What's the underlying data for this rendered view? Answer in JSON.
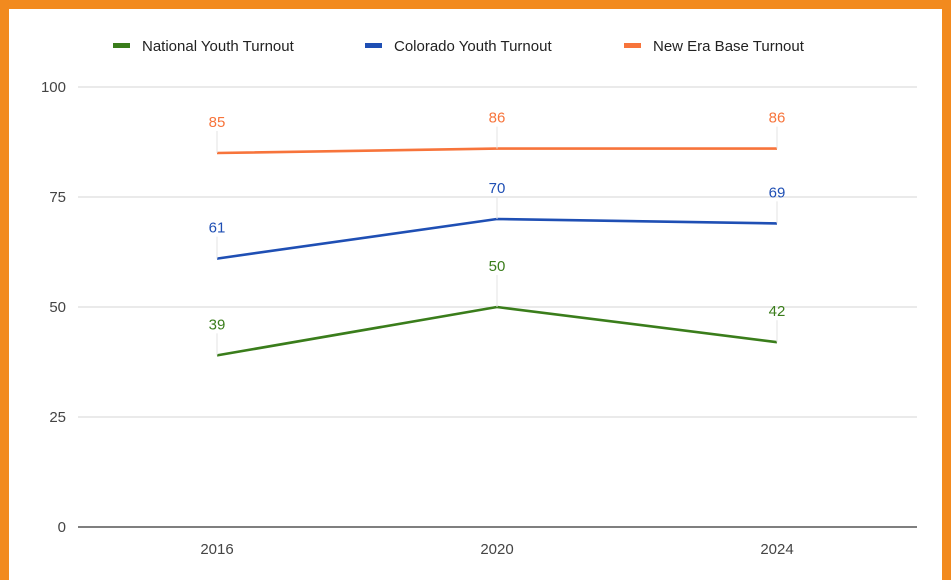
{
  "chart_data": {
    "type": "line",
    "title": "",
    "xlabel": "",
    "ylabel": "",
    "categories": [
      "2016",
      "2020",
      "2024"
    ],
    "ylim": [
      0,
      100
    ],
    "yticks": [
      0,
      25,
      50,
      75,
      100
    ],
    "grid": true,
    "legend_position": "top",
    "series": [
      {
        "name": "National Youth Turnout",
        "color": "#3a7d1b",
        "values": [
          39,
          50,
          42
        ]
      },
      {
        "name": "Colorado Youth Turnout",
        "color": "#1f4fb4",
        "values": [
          61,
          70,
          69
        ]
      },
      {
        "name": "New Era Base Turnout",
        "color": "#f7743b",
        "values": [
          85,
          86,
          86
        ]
      }
    ]
  }
}
